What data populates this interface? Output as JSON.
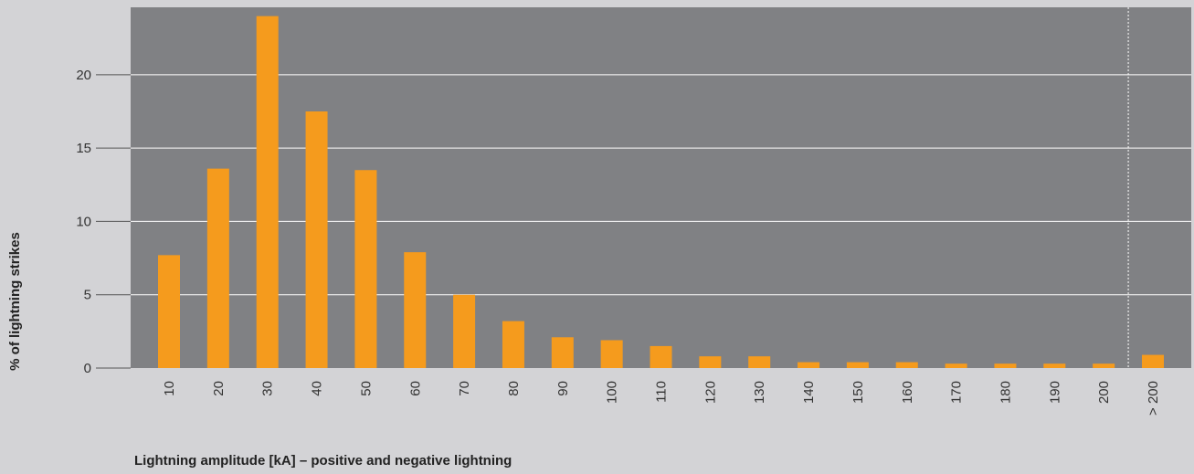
{
  "colors": {
    "background": "#d3d3d6",
    "plot_background": "#808184",
    "bar": "#f59b1d",
    "grid": "#ffffff",
    "divider": "#ffffff"
  },
  "chart_data": {
    "type": "bar",
    "title": "",
    "xlabel": "Lightning amplitude [kA] – positive and negative lightning",
    "ylabel": "% of lightning strikes",
    "categories": [
      "10",
      "20",
      "30",
      "40",
      "50",
      "60",
      "70",
      "80",
      "90",
      "100",
      "110",
      "120",
      "130",
      "140",
      "150",
      "160",
      "170",
      "180",
      "190",
      "200",
      "> 200"
    ],
    "values": [
      7.7,
      13.6,
      24.0,
      17.5,
      13.5,
      7.9,
      5.0,
      3.2,
      2.1,
      1.9,
      1.5,
      0.8,
      0.8,
      0.4,
      0.4,
      0.4,
      0.3,
      0.3,
      0.3,
      0.3,
      0.9
    ],
    "yticks": [
      0,
      5,
      10,
      15,
      20
    ],
    "ylim": [
      0,
      24.6
    ],
    "grid": true,
    "legend": false,
    "separator_before": "> 200"
  }
}
